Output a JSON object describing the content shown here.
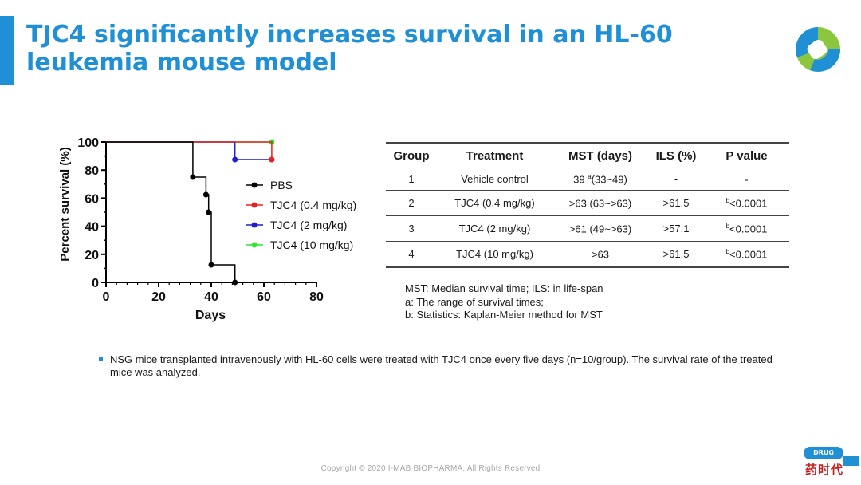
{
  "slide": {
    "title": "TJC4 significantly increases survival in an HL-60 leukemia mouse model",
    "copyright": "Copyright © 2020 I-MAB BIOPHARMA, All Rights Reserved",
    "bullet": "NSG mice transplanted intravenously with HL-60 cells were treated with TJC4 once every five days (n=10/group). The survival rate of the treated mice was analyzed.",
    "watermark": {
      "badge": "DRUG TIMES",
      "chinese": "药时代"
    },
    "colors": {
      "accent": "#1f8fd6",
      "logo_green": "#8cc63f",
      "logo_blue": "#1f8fd6"
    },
    "logo_icon": "company-logo-icon"
  },
  "chart_data": {
    "type": "line",
    "subtype": "kaplan-meier-step",
    "xlabel": "Days",
    "ylabel": "Percent survival (%)",
    "xlim": [
      0,
      80
    ],
    "ylim": [
      0,
      100
    ],
    "xticks": [
      "0",
      "20",
      "40",
      "60",
      "80"
    ],
    "yticks": [
      "0",
      "20",
      "40",
      "60",
      "80",
      "100"
    ],
    "legend_position": "center-right",
    "series": [
      {
        "name": "PBS",
        "color": "#000000",
        "x": [
          0,
          33,
          38,
          39,
          40,
          49
        ],
        "y": [
          100,
          75,
          62.5,
          50,
          12.5,
          0
        ]
      },
      {
        "name": "TJC4 (0.4 mg/kg)",
        "color": "#e8231f",
        "x": [
          0,
          63
        ],
        "y": [
          100,
          87.5
        ]
      },
      {
        "name": "TJC4 (2 mg/kg)",
        "color": "#1f1fcf",
        "x": [
          0,
          49,
          63
        ],
        "y": [
          100,
          87.5,
          87.5
        ]
      },
      {
        "name": "TJC4 (10 mg/kg)",
        "color": "#2ee830",
        "x": [
          0,
          63
        ],
        "y": [
          100,
          100
        ]
      }
    ]
  },
  "table": {
    "headers": [
      "Group",
      "Treatment",
      "MST (days)",
      "ILS (%)",
      "P value"
    ],
    "rows": [
      {
        "group": "1",
        "treatment": "Vehicle control",
        "mst": "39 ",
        "mst_sup": "a",
        "mst_rest": "(33~49)",
        "ils": "-",
        "p_sup": "",
        "p": "-"
      },
      {
        "group": "2",
        "treatment": "TJC4 (0.4 mg/kg)",
        "mst": ">63 (63~>63)",
        "mst_sup": "",
        "mst_rest": "",
        "ils": ">61.5",
        "p_sup": "b",
        "p": "<0.0001"
      },
      {
        "group": "3",
        "treatment": "TJC4 (2 mg/kg)",
        "mst": ">61 (49~>63)",
        "mst_sup": "",
        "mst_rest": "",
        "ils": ">57.1",
        "p_sup": "b",
        "p": "<0.0001"
      },
      {
        "group": "4",
        "treatment": "TJC4 (10 mg/kg)",
        "mst": ">63",
        "mst_sup": "",
        "mst_rest": "",
        "ils": ">61.5",
        "p_sup": "b",
        "p": "<0.0001"
      }
    ]
  },
  "notes": [
    "MST: Median survival time; ILS: in life-span",
    "a: The range of survival times;",
    "b: Statistics: Kaplan-Meier method for MST"
  ]
}
